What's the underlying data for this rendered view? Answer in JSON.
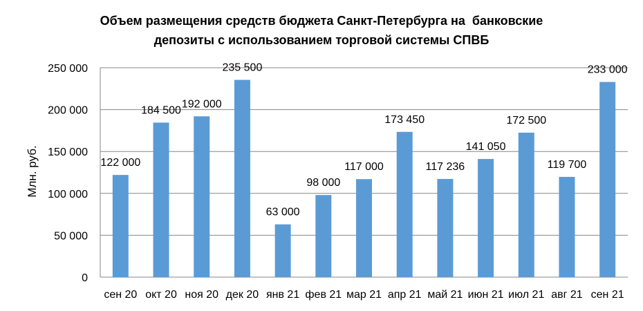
{
  "chart_data": {
    "type": "bar",
    "title_lines": [
      "Объем размещения средств бюджета Санкт-Петербурга на  банковские",
      "депозиты с использованием торговой системы СПВБ"
    ],
    "xlabel": "",
    "ylabel": "Млн. руб.",
    "ylim": [
      0,
      250000
    ],
    "yticks": [
      0,
      50000,
      100000,
      150000,
      200000,
      250000
    ],
    "ytick_labels": [
      "0",
      "50 000",
      "100 000",
      "150 000",
      "200 000",
      "250 000"
    ],
    "grid": true,
    "legend": "none",
    "bar_color": "#5B9BD5",
    "grid_color": "#868686",
    "categories": [
      "сен 20",
      "окт 20",
      "ноя 20",
      "дек 20",
      "янв 21",
      "фев 21",
      "мар 21",
      "апр 21",
      "май 21",
      "июн 21",
      "июл 21",
      "авг 21",
      "сен 21"
    ],
    "values": [
      122000,
      184500,
      192000,
      235500,
      63000,
      98000,
      117000,
      173450,
      117236,
      141050,
      172500,
      119700,
      233000
    ],
    "data_labels": [
      "122 000",
      "184 500",
      "192 000",
      "235 500",
      "63 000",
      "98 000",
      "117 000",
      "173 450",
      "117 236",
      "141 050",
      "172 500",
      "119 700",
      "233 000"
    ]
  }
}
